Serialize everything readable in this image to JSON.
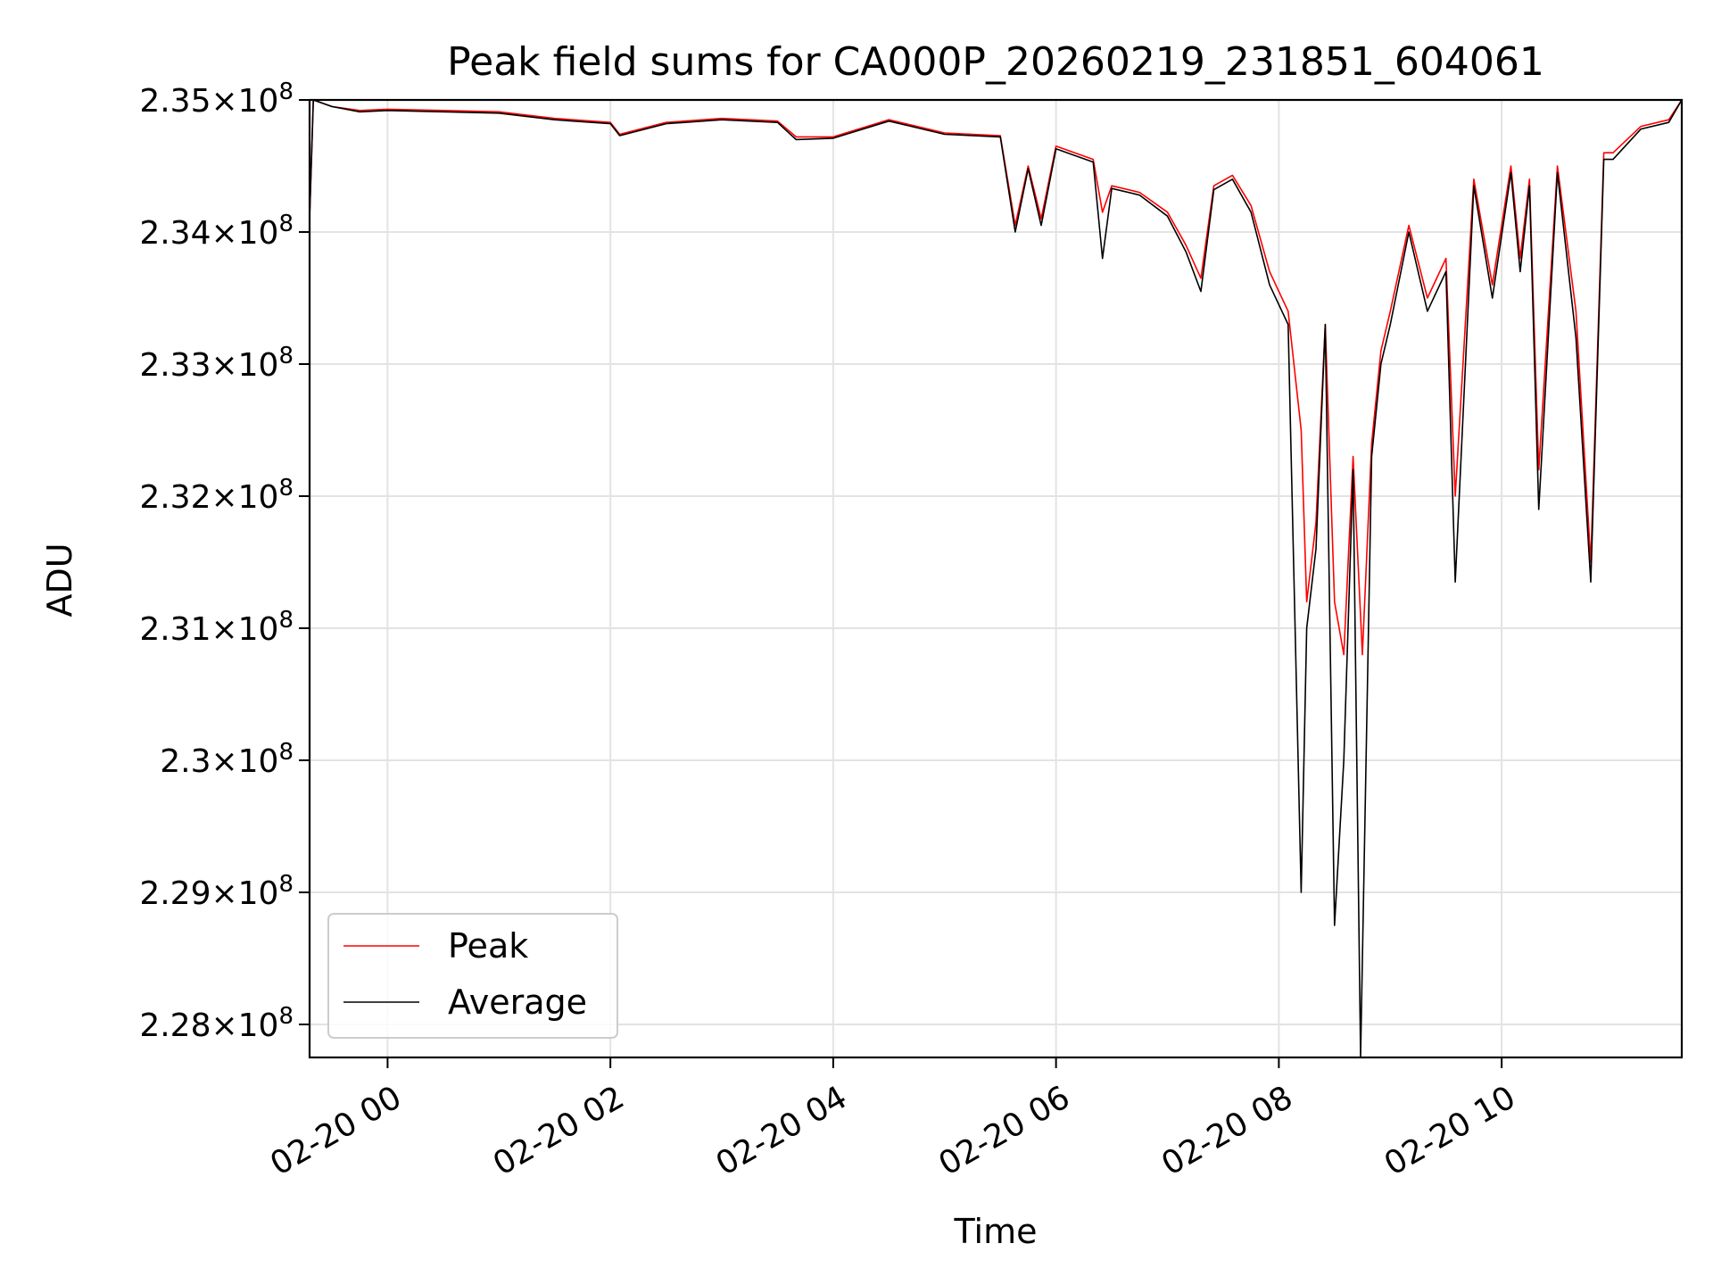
{
  "chart_data": {
    "type": "line",
    "title": "Peak field sums for CA000P_20260219_231851_604061",
    "xlabel": "Time",
    "ylabel": "ADU",
    "xlim": [
      "2026-02-19 23:18",
      "2026-02-20 11:37"
    ],
    "ylim": [
      227750000,
      235000000
    ],
    "x_ticks": [
      {
        "value": "2026-02-20 00:00",
        "label": "02-20 00"
      },
      {
        "value": "2026-02-20 02:00",
        "label": "02-20 02"
      },
      {
        "value": "2026-02-20 04:00",
        "label": "02-20 04"
      },
      {
        "value": "2026-02-20 06:00",
        "label": "02-20 06"
      },
      {
        "value": "2026-02-20 08:00",
        "label": "02-20 08"
      },
      {
        "value": "2026-02-20 10:00",
        "label": "02-20 10"
      }
    ],
    "y_ticks": [
      {
        "value": 235000000,
        "mantissa": "2.35",
        "base": "10",
        "exp": "8"
      },
      {
        "value": 234000000,
        "mantissa": "2.34",
        "base": "10",
        "exp": "8"
      },
      {
        "value": 233000000,
        "mantissa": "2.33",
        "base": "10",
        "exp": "8"
      },
      {
        "value": 232000000,
        "mantissa": "2.32",
        "base": "10",
        "exp": "8"
      },
      {
        "value": 231000000,
        "mantissa": "2.31",
        "base": "10",
        "exp": "8"
      },
      {
        "value": 230000000,
        "mantissa": "2.3",
        "base": "10",
        "exp": "8"
      },
      {
        "value": 229000000,
        "mantissa": "2.29",
        "base": "10",
        "exp": "8"
      },
      {
        "value": 228000000,
        "mantissa": "2.28",
        "base": "10",
        "exp": "8"
      }
    ],
    "grid": true,
    "legend_position": "lower-left",
    "series": [
      {
        "name": "Peak",
        "color": "#ff0000",
        "points": [
          [
            "2026-02-19 23:18",
            234100000
          ],
          [
            "2026-02-19 23:20",
            235000000
          ],
          [
            "2026-02-19 23:30",
            234950000
          ],
          [
            "2026-02-19 23:45",
            234920000
          ],
          [
            "2026-02-20 00:00",
            234930000
          ],
          [
            "2026-02-20 00:30",
            234920000
          ],
          [
            "2026-02-20 01:00",
            234910000
          ],
          [
            "2026-02-20 01:30",
            234860000
          ],
          [
            "2026-02-20 02:00",
            234830000
          ],
          [
            "2026-02-20 02:05",
            234740000
          ],
          [
            "2026-02-20 02:30",
            234830000
          ],
          [
            "2026-02-20 03:00",
            234860000
          ],
          [
            "2026-02-20 03:30",
            234840000
          ],
          [
            "2026-02-20 03:40",
            234720000
          ],
          [
            "2026-02-20 04:00",
            234720000
          ],
          [
            "2026-02-20 04:30",
            234850000
          ],
          [
            "2026-02-20 05:00",
            234750000
          ],
          [
            "2026-02-20 05:30",
            234730000
          ],
          [
            "2026-02-20 05:38",
            234050000
          ],
          [
            "2026-02-20 05:45",
            234500000
          ],
          [
            "2026-02-20 05:52",
            234100000
          ],
          [
            "2026-02-20 06:00",
            234650000
          ],
          [
            "2026-02-20 06:20",
            234550000
          ],
          [
            "2026-02-20 06:25",
            234150000
          ],
          [
            "2026-02-20 06:30",
            234350000
          ],
          [
            "2026-02-20 06:45",
            234300000
          ],
          [
            "2026-02-20 07:00",
            234150000
          ],
          [
            "2026-02-20 07:10",
            233900000
          ],
          [
            "2026-02-20 07:18",
            233650000
          ],
          [
            "2026-02-20 07:25",
            234350000
          ],
          [
            "2026-02-20 07:35",
            234430000
          ],
          [
            "2026-02-20 07:45",
            234200000
          ],
          [
            "2026-02-20 07:55",
            233700000
          ],
          [
            "2026-02-20 08:05",
            233400000
          ],
          [
            "2026-02-20 08:12",
            232500000
          ],
          [
            "2026-02-20 08:15",
            231200000
          ],
          [
            "2026-02-20 08:20",
            231800000
          ],
          [
            "2026-02-20 08:25",
            233300000
          ],
          [
            "2026-02-20 08:30",
            231200000
          ],
          [
            "2026-02-20 08:35",
            230800000
          ],
          [
            "2026-02-20 08:40",
            232300000
          ],
          [
            "2026-02-20 08:45",
            230800000
          ],
          [
            "2026-02-20 08:50",
            232400000
          ],
          [
            "2026-02-20 08:55",
            233100000
          ],
          [
            "2026-02-20 09:00",
            233400000
          ],
          [
            "2026-02-20 09:10",
            234050000
          ],
          [
            "2026-02-20 09:20",
            233500000
          ],
          [
            "2026-02-20 09:30",
            233800000
          ],
          [
            "2026-02-20 09:35",
            232000000
          ],
          [
            "2026-02-20 09:45",
            234400000
          ],
          [
            "2026-02-20 09:55",
            233600000
          ],
          [
            "2026-02-20 10:05",
            234500000
          ],
          [
            "2026-02-20 10:10",
            233800000
          ],
          [
            "2026-02-20 10:15",
            234400000
          ],
          [
            "2026-02-20 10:20",
            232200000
          ],
          [
            "2026-02-20 10:30",
            234500000
          ],
          [
            "2026-02-20 10:40",
            233400000
          ],
          [
            "2026-02-20 10:48",
            231500000
          ],
          [
            "2026-02-20 10:55",
            234600000
          ],
          [
            "2026-02-20 11:00",
            234600000
          ],
          [
            "2026-02-20 11:15",
            234800000
          ],
          [
            "2026-02-20 11:30",
            234850000
          ],
          [
            "2026-02-20 11:37",
            235000000
          ]
        ]
      },
      {
        "name": "Average",
        "color": "#000000",
        "points": [
          [
            "2026-02-19 23:18",
            234100000
          ],
          [
            "2026-02-19 23:20",
            235000000
          ],
          [
            "2026-02-19 23:30",
            234950000
          ],
          [
            "2026-02-19 23:45",
            234910000
          ],
          [
            "2026-02-20 00:00",
            234920000
          ],
          [
            "2026-02-20 00:30",
            234910000
          ],
          [
            "2026-02-20 01:00",
            234900000
          ],
          [
            "2026-02-20 01:30",
            234850000
          ],
          [
            "2026-02-20 02:00",
            234820000
          ],
          [
            "2026-02-20 02:05",
            234730000
          ],
          [
            "2026-02-20 02:30",
            234820000
          ],
          [
            "2026-02-20 03:00",
            234850000
          ],
          [
            "2026-02-20 03:30",
            234830000
          ],
          [
            "2026-02-20 03:40",
            234700000
          ],
          [
            "2026-02-20 04:00",
            234710000
          ],
          [
            "2026-02-20 04:30",
            234840000
          ],
          [
            "2026-02-20 05:00",
            234740000
          ],
          [
            "2026-02-20 05:30",
            234720000
          ],
          [
            "2026-02-20 05:38",
            234000000
          ],
          [
            "2026-02-20 05:45",
            234480000
          ],
          [
            "2026-02-20 05:52",
            234050000
          ],
          [
            "2026-02-20 06:00",
            234630000
          ],
          [
            "2026-02-20 06:20",
            234530000
          ],
          [
            "2026-02-20 06:25",
            233800000
          ],
          [
            "2026-02-20 06:30",
            234330000
          ],
          [
            "2026-02-20 06:45",
            234280000
          ],
          [
            "2026-02-20 07:00",
            234120000
          ],
          [
            "2026-02-20 07:10",
            233850000
          ],
          [
            "2026-02-20 07:18",
            233550000
          ],
          [
            "2026-02-20 07:25",
            234320000
          ],
          [
            "2026-02-20 07:35",
            234400000
          ],
          [
            "2026-02-20 07:45",
            234150000
          ],
          [
            "2026-02-20 07:55",
            233600000
          ],
          [
            "2026-02-20 08:05",
            233300000
          ],
          [
            "2026-02-20 08:12",
            229000000
          ],
          [
            "2026-02-20 08:15",
            231000000
          ],
          [
            "2026-02-20 08:20",
            231600000
          ],
          [
            "2026-02-20 08:25",
            233300000
          ],
          [
            "2026-02-20 08:30",
            228750000
          ],
          [
            "2026-02-20 08:35",
            230000000
          ],
          [
            "2026-02-20 08:40",
            232200000
          ],
          [
            "2026-02-20 08:44",
            227750000
          ],
          [
            "2026-02-20 08:50",
            232300000
          ],
          [
            "2026-02-20 08:55",
            233000000
          ],
          [
            "2026-02-20 09:00",
            233300000
          ],
          [
            "2026-02-20 09:10",
            234000000
          ],
          [
            "2026-02-20 09:20",
            233400000
          ],
          [
            "2026-02-20 09:30",
            233700000
          ],
          [
            "2026-02-20 09:35",
            231350000
          ],
          [
            "2026-02-20 09:45",
            234350000
          ],
          [
            "2026-02-20 09:55",
            233500000
          ],
          [
            "2026-02-20 10:05",
            234450000
          ],
          [
            "2026-02-20 10:10",
            233700000
          ],
          [
            "2026-02-20 10:15",
            234350000
          ],
          [
            "2026-02-20 10:20",
            231900000
          ],
          [
            "2026-02-20 10:30",
            234450000
          ],
          [
            "2026-02-20 10:40",
            233200000
          ],
          [
            "2026-02-20 10:48",
            231350000
          ],
          [
            "2026-02-20 10:55",
            234550000
          ],
          [
            "2026-02-20 11:00",
            234550000
          ],
          [
            "2026-02-20 11:15",
            234780000
          ],
          [
            "2026-02-20 11:30",
            234830000
          ],
          [
            "2026-02-20 11:37",
            235000000
          ]
        ]
      }
    ]
  }
}
